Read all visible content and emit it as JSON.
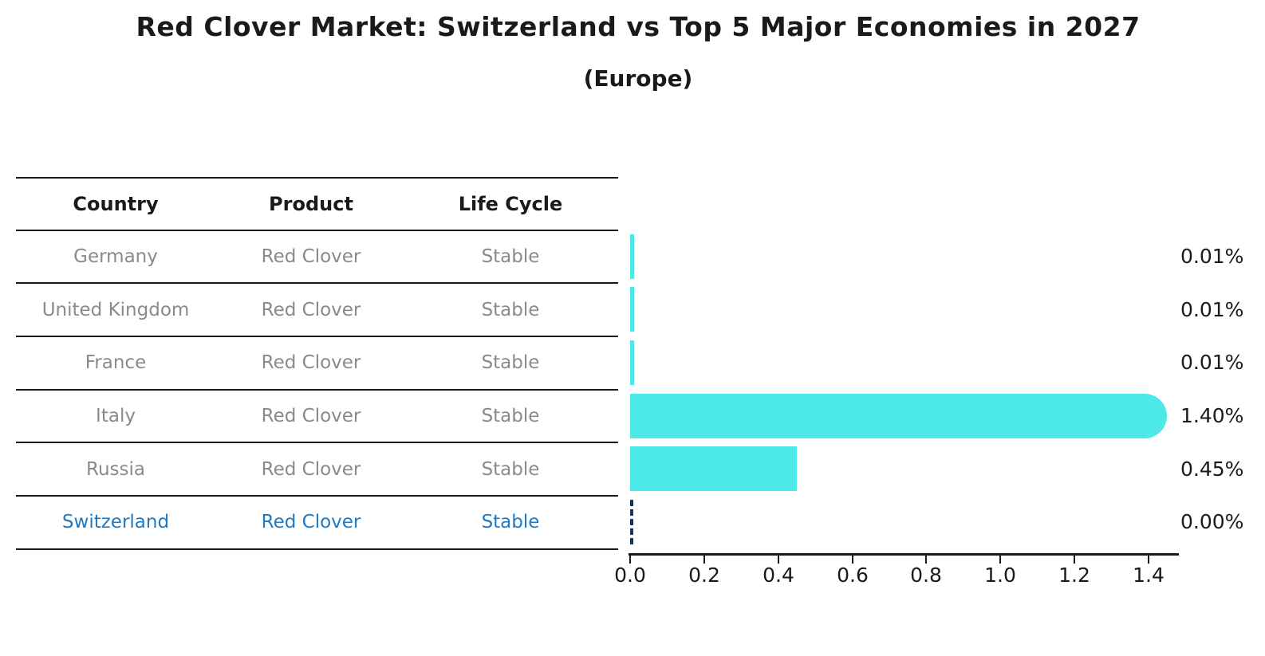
{
  "header": {
    "title": "Red Clover Market: Switzerland vs Top 5 Major Economies in 2027",
    "subtitle": "(Europe)"
  },
  "table": {
    "columns": [
      "Country",
      "Product",
      "Life Cycle"
    ],
    "rows": [
      {
        "country": "Germany",
        "product": "Red Clover",
        "life_cycle": "Stable"
      },
      {
        "country": "United Kingdom",
        "product": "Red Clover",
        "life_cycle": "Stable"
      },
      {
        "country": "France",
        "product": "Red Clover",
        "life_cycle": "Stable"
      },
      {
        "country": "Italy",
        "product": "Red Clover",
        "life_cycle": "Stable"
      },
      {
        "country": "Russia",
        "product": "Red Clover",
        "life_cycle": "Stable"
      },
      {
        "country": "Switzerland",
        "product": "Red Clover",
        "life_cycle": "Stable"
      }
    ],
    "highlighted_row": "Switzerland"
  },
  "chart_data": {
    "type": "bar",
    "orientation": "horizontal",
    "title": "Red Clover Market: Switzerland vs Top 5 Major Economies in 2027",
    "subtitle": "(Europe)",
    "categories": [
      "Germany",
      "United Kingdom",
      "France",
      "Italy",
      "Russia",
      "Switzerland"
    ],
    "values": [
      0.01,
      0.01,
      0.01,
      1.4,
      0.45,
      0.0
    ],
    "value_labels": [
      "0.01%",
      "0.01%",
      "0.01%",
      "1.40%",
      "0.45%",
      "0.00%"
    ],
    "x_ticks": [
      "0.0",
      "0.2",
      "0.4",
      "0.6",
      "0.8",
      "1.0",
      "1.2",
      "1.4"
    ],
    "xlim": [
      0,
      1.48
    ],
    "xlabel": "",
    "ylabel": "",
    "grid": false,
    "legend": "none",
    "bar_color": "#4DE8E8",
    "zero_bar_outline_color": "#16355A",
    "highlight_text_color": "#1F7AC4",
    "row_text_color": "#8A8A8A",
    "axis_color": "#1A1A1A",
    "bar_end_style": {
      "Italy": "rounded",
      "Switzerland": "dashed-outline-zero"
    }
  }
}
